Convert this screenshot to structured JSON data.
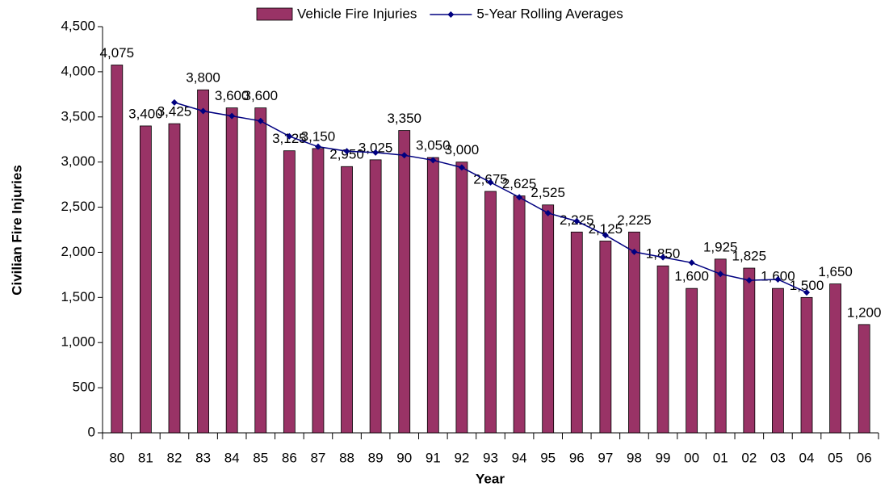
{
  "chart_data": {
    "type": "bar",
    "y_label": "Civilian Fire Injuries",
    "x_label": "Year",
    "categories": [
      "80",
      "81",
      "82",
      "83",
      "84",
      "85",
      "86",
      "87",
      "88",
      "89",
      "90",
      "91",
      "92",
      "93",
      "94",
      "95",
      "96",
      "97",
      "98",
      "99",
      "00",
      "01",
      "02",
      "03",
      "04",
      "05",
      "06"
    ],
    "series": [
      {
        "name": "Vehicle Fire Injuries",
        "type": "bar",
        "color": "#993366",
        "values": [
          4075,
          3400,
          3425,
          3800,
          3600,
          3600,
          3125,
          3150,
          2950,
          3025,
          3350,
          3050,
          3000,
          2675,
          2625,
          2525,
          2225,
          2125,
          2225,
          1850,
          1600,
          1925,
          1825,
          1600,
          1500,
          1650,
          1200
        ],
        "value_labels": [
          "4,075",
          "3,400",
          "3,425",
          "3,800",
          "3,600",
          "3,600",
          "3,125",
          "3,150",
          "2,950",
          "3,025",
          "3,350",
          "3,050",
          "3,000",
          "2,675",
          "2,625",
          "2,525",
          "2,225",
          "2,125",
          "2,225",
          "1,850",
          "1,600",
          "1,925",
          "1,825",
          "1,600",
          "1,500",
          "1,650",
          "1,200"
        ]
      },
      {
        "name": "5-Year Rolling Averages",
        "type": "line",
        "color": "#000080",
        "values": [
          null,
          null,
          3660,
          3565,
          3510,
          3455,
          3285,
          3170,
          3120,
          3105,
          3075,
          3020,
          2940,
          2775,
          2610,
          2435,
          2345,
          2190,
          2005,
          1945,
          1885,
          1760,
          1690,
          1700,
          1555,
          null,
          null
        ]
      }
    ],
    "ylim": [
      0,
      4500
    ],
    "yticks": [
      0,
      500,
      {
        "value": 1000,
        "label": "1,000"
      },
      {
        "value": 1500,
        "label": "1,500"
      },
      {
        "value": 2000,
        "label": "2,000"
      },
      {
        "value": 2500,
        "label": "2,500"
      },
      {
        "value": 3000,
        "label": "3,000"
      },
      {
        "value": 3500,
        "label": "3,500"
      },
      {
        "value": 4000,
        "label": "4,000"
      },
      {
        "value": 4500,
        "label": "4,500"
      }
    ],
    "grid": false,
    "legend": "top"
  }
}
